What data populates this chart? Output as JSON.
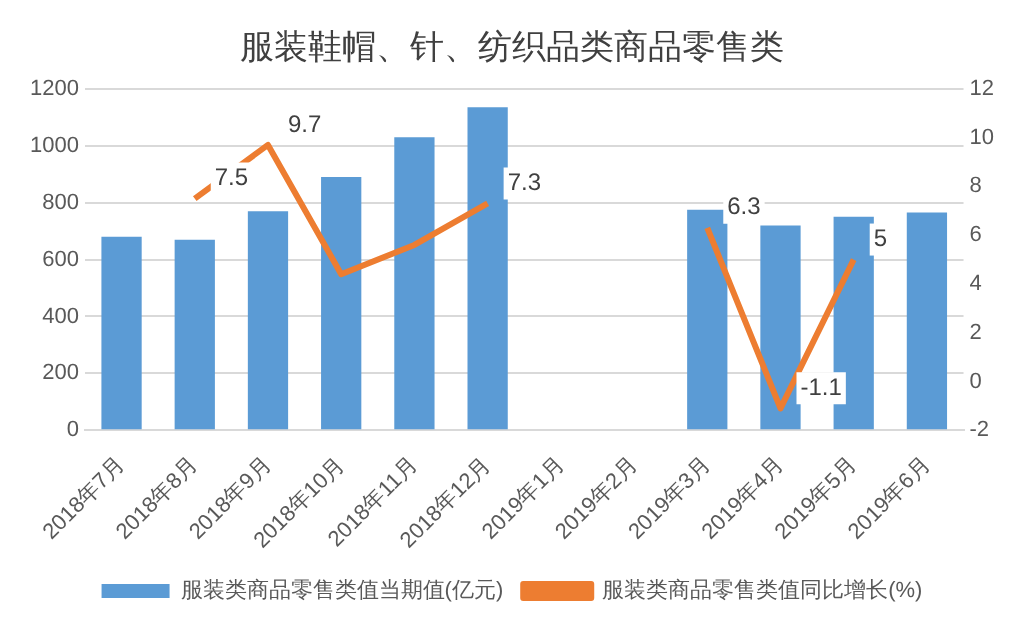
{
  "chart_data": {
    "type": "bar",
    "title": "服装鞋帽、针、纺织品类商品零售类",
    "categories": [
      "2018年7月",
      "2018年8月",
      "2018年9月",
      "2018年10月",
      "2018年11月",
      "2018年12月",
      "2019年1月",
      "2019年2月",
      "2019年3月",
      "2019年4月",
      "2019年5月",
      "2019年6月"
    ],
    "series": [
      {
        "name": "服装类商品零售类值当期值(亿元)",
        "color": "#5b9bd5",
        "values": [
          680,
          670,
          770,
          890,
          1030,
          1135,
          null,
          null,
          775,
          720,
          750,
          765
        ]
      },
      {
        "name": "服装类商品零售类值同比增长(%)",
        "type": "line",
        "axis": "y2",
        "color": "#ed7d31",
        "values": [
          null,
          7.5,
          9.7,
          4.4,
          5.6,
          7.3,
          null,
          null,
          6.3,
          -1.1,
          5,
          null
        ],
        "value_labels": [
          null,
          "7.5",
          "9.7",
          null,
          null,
          "7.3",
          null,
          null,
          "6.3",
          "-1.1",
          "5",
          null
        ]
      }
    ],
    "ylim": [
      0,
      1200
    ],
    "yticks": [
      0,
      200,
      400,
      600,
      800,
      1000,
      1200
    ],
    "y2lim": [
      -2,
      12
    ],
    "y2ticks": [
      -2,
      0,
      2,
      4,
      6,
      8,
      10,
      12
    ],
    "grid": "y",
    "legend": "bottom",
    "marker": "none"
  }
}
